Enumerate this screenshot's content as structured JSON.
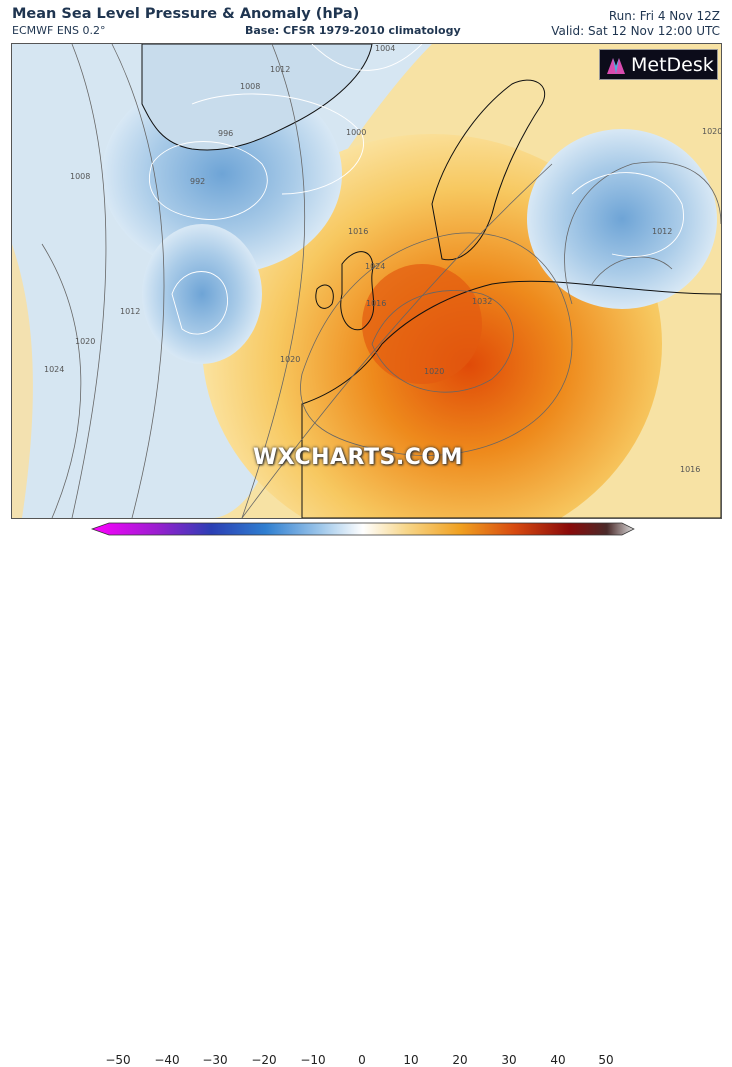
{
  "header": {
    "title": "Mean Sea Level Pressure & Anomaly (hPa)",
    "model": "ECMWF ENS 0.2°",
    "base": "Base: CFSR 1979-2010 climatology",
    "run": "Run: Fri 4 Nov 12Z",
    "valid": "Valid: Sat 12 Nov 12:00 UTC"
  },
  "logo": {
    "text": "MetDesk"
  },
  "watermark": "WXCHARTS.COM",
  "isobar_labels": [
    "1004",
    "1012",
    "1008",
    "996",
    "992",
    "1000",
    "1008",
    "1012",
    "1020",
    "1024",
    "1016",
    "1024",
    "1032",
    "1020",
    "1016",
    "1020",
    "1012",
    "1020",
    "1016"
  ],
  "colorbar": {
    "ticks": [
      "−50",
      "−40",
      "−30",
      "−20",
      "−10",
      "0",
      "10",
      "20",
      "30",
      "40",
      "50"
    ],
    "colors": {
      "low": "#e100e6",
      "neg": "#2a63b8",
      "zero": "#ffffff",
      "pos": "#f0a020",
      "high": "#8a0a0a"
    }
  }
}
